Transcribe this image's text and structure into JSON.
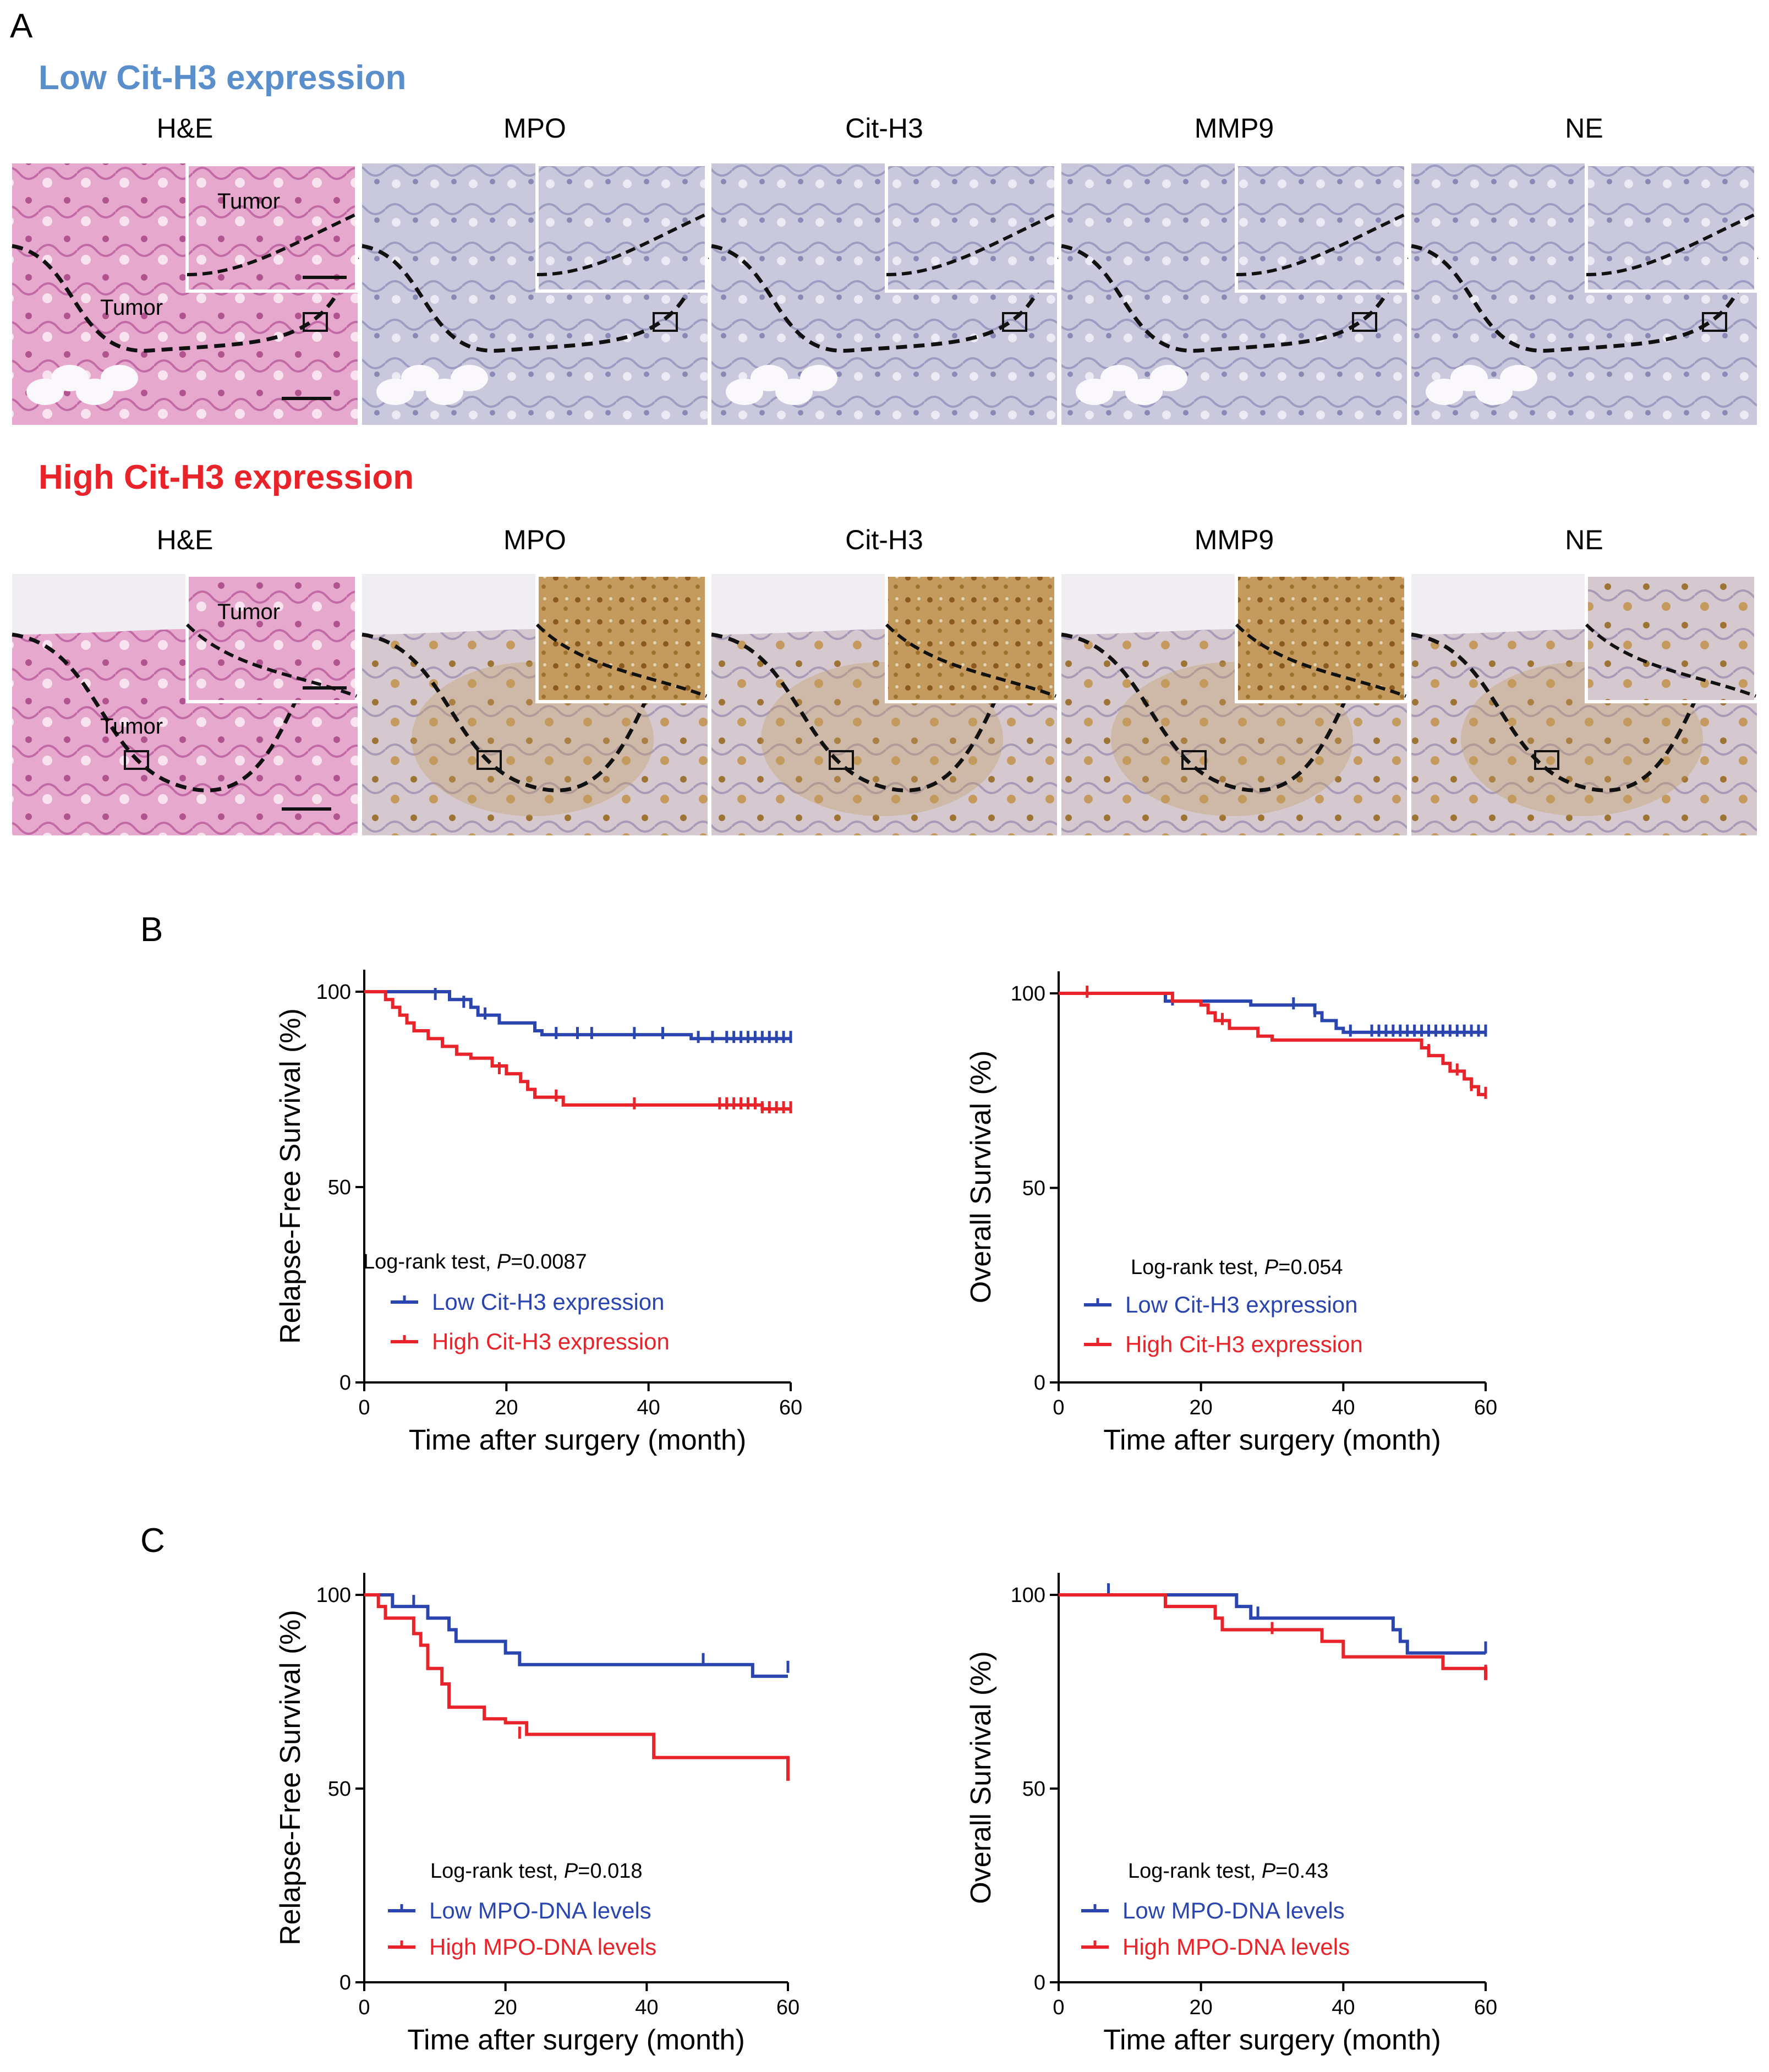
{
  "figure": {
    "panel_a": "A",
    "panel_b": "B",
    "panel_c": "C"
  },
  "histology": {
    "rows": [
      {
        "key": "low",
        "title": "Low Cit-H3 expression",
        "title_color": "#5b8fcc",
        "stain_style": "blue",
        "tumor_label": "Tumor",
        "columns": [
          "H&E",
          "MPO",
          "Cit-H3",
          "MMP9",
          "NE"
        ]
      },
      {
        "key": "high",
        "title": "High Cit-H3 expression",
        "title_color": "#e8232a",
        "stain_style": "brown",
        "tumor_label": "Tumor",
        "columns": [
          "H&E",
          "MPO",
          "Cit-H3",
          "MMP9",
          "NE"
        ]
      }
    ]
  },
  "chart_data": [
    {
      "id": "b-rfs",
      "panel": "B",
      "type": "line",
      "subtype": "kaplan-meier",
      "xlabel": "Time after surgery (month)",
      "ylabel": "Relapse-Free Survival (%)",
      "xlim": [
        0,
        60
      ],
      "ylim": [
        0,
        100
      ],
      "xticks": [
        0,
        20,
        40,
        60
      ],
      "yticks": [
        0,
        50,
        100
      ],
      "stat_prefix": "Log-rank test, ",
      "stat_p": "P",
      "stat_value": "=0.0087",
      "series": [
        {
          "name": "Low Cit-H3 expression",
          "color": "#2a45b0",
          "steps": [
            [
              0,
              100
            ],
            [
              9,
              100
            ],
            [
              12,
              98
            ],
            [
              15,
              96
            ],
            [
              16,
              94
            ],
            [
              19,
              92
            ],
            [
              24,
              90
            ],
            [
              25,
              89
            ],
            [
              45,
              89
            ],
            [
              46,
              88
            ],
            [
              60,
              88
            ]
          ],
          "censors": [
            [
              10,
              99
            ],
            [
              14,
              97
            ],
            [
              17,
              94
            ],
            [
              27,
              89
            ],
            [
              30,
              89
            ],
            [
              32,
              89
            ],
            [
              38,
              89
            ],
            [
              42,
              89
            ],
            [
              47,
              88
            ],
            [
              49,
              88
            ],
            [
              51,
              88
            ],
            [
              52,
              88
            ],
            [
              53,
              88
            ],
            [
              54,
              88
            ],
            [
              55,
              88
            ],
            [
              56,
              88
            ],
            [
              57,
              88
            ],
            [
              58,
              88
            ],
            [
              59,
              88
            ],
            [
              60,
              88
            ]
          ]
        },
        {
          "name": "High Cit-H3 expression",
          "color": "#e8232a",
          "steps": [
            [
              0,
              100
            ],
            [
              3,
              98
            ],
            [
              4,
              96
            ],
            [
              5,
              94
            ],
            [
              6,
              92
            ],
            [
              7,
              90
            ],
            [
              9,
              88
            ],
            [
              11,
              86
            ],
            [
              13,
              84
            ],
            [
              15,
              83
            ],
            [
              18,
              81
            ],
            [
              20,
              79
            ],
            [
              22,
              77
            ],
            [
              23,
              75
            ],
            [
              24,
              73
            ],
            [
              28,
              71
            ],
            [
              55,
              71
            ],
            [
              56,
              70
            ],
            [
              60,
              70
            ]
          ],
          "censors": [
            [
              19,
              80
            ],
            [
              27,
              73
            ],
            [
              38,
              71
            ],
            [
              50,
              71
            ],
            [
              51,
              71
            ],
            [
              52,
              71
            ],
            [
              53,
              71
            ],
            [
              54,
              71
            ],
            [
              55,
              71
            ],
            [
              56,
              70
            ],
            [
              57,
              70
            ],
            [
              58,
              70
            ],
            [
              59,
              70
            ],
            [
              60,
              70
            ]
          ]
        }
      ]
    },
    {
      "id": "b-os",
      "panel": "B",
      "type": "line",
      "subtype": "kaplan-meier",
      "xlabel": "Time after surgery (month)",
      "ylabel": "Overall Survival (%)",
      "xlim": [
        0,
        60
      ],
      "ylim": [
        0,
        100
      ],
      "xticks": [
        0,
        20,
        40,
        60
      ],
      "yticks": [
        0,
        50,
        100
      ],
      "stat_prefix": "Log-rank test, ",
      "stat_p": "P",
      "stat_value": "=0.054",
      "series": [
        {
          "name": "Low Cit-H3 expression",
          "color": "#2a45b0",
          "steps": [
            [
              0,
              100
            ],
            [
              14,
              100
            ],
            [
              15,
              98
            ],
            [
              26,
              98
            ],
            [
              27,
              97
            ],
            [
              34,
              97
            ],
            [
              36,
              95
            ],
            [
              37,
              93
            ],
            [
              39,
              91
            ],
            [
              40,
              90
            ],
            [
              60,
              90
            ]
          ],
          "censors": [
            [
              16,
              98
            ],
            [
              33,
              97
            ],
            [
              36,
              95
            ],
            [
              41,
              90
            ],
            [
              44,
              90
            ],
            [
              45,
              90
            ],
            [
              46,
              90
            ],
            [
              47,
              90
            ],
            [
              48,
              90
            ],
            [
              49,
              90
            ],
            [
              50,
              90
            ],
            [
              51,
              90
            ],
            [
              52,
              90
            ],
            [
              53,
              90
            ],
            [
              54,
              90
            ],
            [
              55,
              90
            ],
            [
              56,
              90
            ],
            [
              57,
              90
            ],
            [
              58,
              90
            ],
            [
              59,
              90
            ],
            [
              60,
              90
            ]
          ]
        },
        {
          "name": "High Cit-H3 expression",
          "color": "#e8232a",
          "steps": [
            [
              0,
              100
            ],
            [
              15,
              100
            ],
            [
              16,
              98
            ],
            [
              20,
              97
            ],
            [
              21,
              95
            ],
            [
              22,
              93
            ],
            [
              24,
              91
            ],
            [
              28,
              89
            ],
            [
              30,
              88
            ],
            [
              50,
              88
            ],
            [
              51,
              86
            ],
            [
              52,
              84
            ],
            [
              54,
              82
            ],
            [
              55,
              80
            ],
            [
              57,
              78
            ],
            [
              58,
              76
            ],
            [
              59,
              74
            ],
            [
              60,
              74
            ]
          ],
          "censors": [
            [
              4,
              100
            ],
            [
              23,
              93
            ],
            [
              52,
              85
            ],
            [
              56,
              80
            ],
            [
              58,
              76
            ],
            [
              60,
              74
            ]
          ]
        }
      ]
    },
    {
      "id": "c-rfs",
      "panel": "C",
      "type": "line",
      "subtype": "kaplan-meier",
      "xlabel": "Time after surgery (month)",
      "ylabel": "Relapse-Free Survival (%)",
      "xlim": [
        0,
        60
      ],
      "ylim": [
        0,
        100
      ],
      "xticks": [
        0,
        20,
        40,
        60
      ],
      "yticks": [
        0,
        50,
        100
      ],
      "stat_prefix": "Log-rank test, ",
      "stat_p": "P",
      "stat_value": "=0.018",
      "series": [
        {
          "name": "Low MPO-DNA levels",
          "color": "#2a45b0",
          "steps": [
            [
              0,
              100
            ],
            [
              3,
              100
            ],
            [
              4,
              97
            ],
            [
              8,
              97
            ],
            [
              9,
              94
            ],
            [
              12,
              91
            ],
            [
              13,
              88
            ],
            [
              19,
              88
            ],
            [
              20,
              85
            ],
            [
              22,
              82
            ],
            [
              54,
              82
            ],
            [
              55,
              79
            ],
            [
              60,
              79
            ]
          ],
          "censors": [
            [
              7,
              98
            ],
            [
              48,
              83
            ],
            [
              60,
              81
            ]
          ]
        },
        {
          "name": "High MPO-DNA levels",
          "color": "#e8232a",
          "steps": [
            [
              0,
              100
            ],
            [
              2,
              97
            ],
            [
              3,
              94
            ],
            [
              7,
              90
            ],
            [
              8,
              87
            ],
            [
              9,
              81
            ],
            [
              11,
              77
            ],
            [
              12,
              71
            ],
            [
              16,
              71
            ],
            [
              17,
              68
            ],
            [
              20,
              67
            ],
            [
              23,
              64
            ],
            [
              40,
              64
            ],
            [
              41,
              58
            ],
            [
              59,
              58
            ],
            [
              60,
              52
            ]
          ],
          "censors": [
            [
              22,
              64
            ]
          ]
        }
      ]
    },
    {
      "id": "c-os",
      "panel": "C",
      "type": "line",
      "subtype": "kaplan-meier",
      "xlabel": "Time after surgery (month)",
      "ylabel": "Overall Survival (%)",
      "xlim": [
        0,
        60
      ],
      "ylim": [
        0,
        100
      ],
      "xticks": [
        0,
        20,
        40,
        60
      ],
      "yticks": [
        0,
        50,
        100
      ],
      "stat_prefix": "Log-rank test, ",
      "stat_p": "P",
      "stat_value": "=0.43",
      "series": [
        {
          "name": "Low MPO-DNA levels",
          "color": "#2a45b0",
          "steps": [
            [
              0,
              100
            ],
            [
              24,
              100
            ],
            [
              25,
              97
            ],
            [
              27,
              94
            ],
            [
              46,
              94
            ],
            [
              47,
              91
            ],
            [
              48,
              88
            ],
            [
              49,
              85
            ],
            [
              60,
              85
            ]
          ],
          "censors": [
            [
              7,
              101
            ],
            [
              28,
              95
            ],
            [
              60,
              86
            ]
          ]
        },
        {
          "name": "High MPO-DNA levels",
          "color": "#e8232a",
          "steps": [
            [
              0,
              100
            ],
            [
              14,
              100
            ],
            [
              15,
              97
            ],
            [
              22,
              94
            ],
            [
              23,
              91
            ],
            [
              36,
              91
            ],
            [
              37,
              88
            ],
            [
              40,
              84
            ],
            [
              53,
              84
            ],
            [
              54,
              81
            ],
            [
              59,
              81
            ],
            [
              60,
              78
            ]
          ],
          "censors": [
            [
              30,
              91
            ],
            [
              60,
              80
            ]
          ]
        }
      ]
    }
  ]
}
